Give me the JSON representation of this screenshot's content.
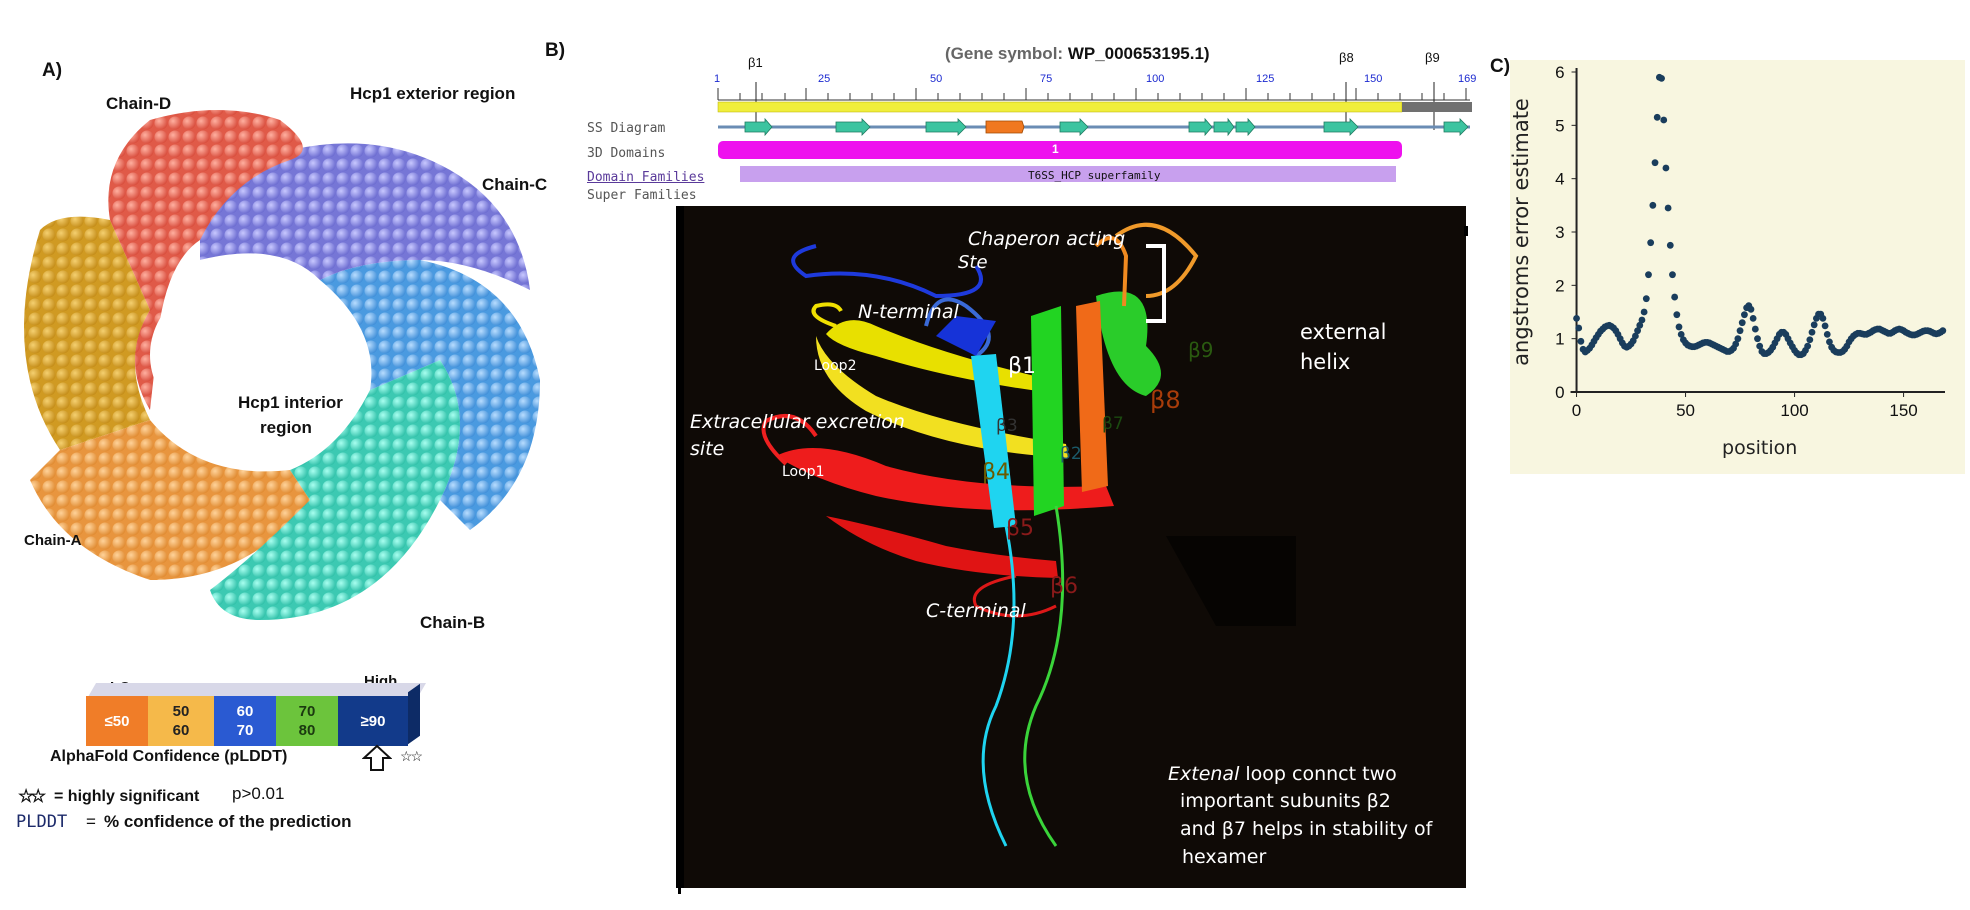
{
  "panel_a": {
    "letter": "A)",
    "chain_d": "Chain-D",
    "exterior": "Hcp1 exterior region",
    "chain_c": "Chain-C",
    "interior_1": "Hcp1 interior",
    "interior_2": "region",
    "chain_a": "Chain-A",
    "chain_b": "Chain-B",
    "colors": {
      "chain_a": "#f0a04b",
      "chain_b": "#4fd8c0",
      "chain_c": "#7b7bd9",
      "chain_d": "#e8604c",
      "chain_e": "#d9a020",
      "chain_f": "#5aa6e0"
    }
  },
  "legend": {
    "low": "LOw",
    "high": "High",
    "bins": [
      {
        "l1": "≤50",
        "l2": "",
        "color": "#f07d28"
      },
      {
        "l1": "50",
        "l2": "60",
        "color": "#f5b94a"
      },
      {
        "l1": "60",
        "l2": "70",
        "color": "#2a5ad2"
      },
      {
        "l1": "70",
        "l2": "80",
        "color": "#6cc43c"
      },
      {
        "l1": "≥90",
        "l2": "",
        "color": "#123a8a"
      }
    ],
    "caption": "AlphaFold Confidence (pLDDT)",
    "star_note": "= highly significant",
    "pvalue": "p>0.01",
    "plddt_key": "PLDDT",
    "plddt_eq": "=",
    "plddt_def": "% confidence of the prediction"
  },
  "panel_b": {
    "letter": "B)",
    "title_prefix": "(Gene symbol: ",
    "title_gene": "WP_000653195.1)",
    "ticks": [
      "1",
      "25",
      "50",
      "75",
      "100",
      "125",
      "150",
      "169"
    ],
    "beta_top": [
      "β1",
      "β8",
      "β9"
    ],
    "tracks": [
      "SS Diagram",
      "3D Domains",
      "Domain Families",
      "Super Families"
    ],
    "domain_label": "1",
    "family_label": "T6SS_HCP superfamily",
    "structure": {
      "chaperon_1": "Chaperon acting",
      "chaperon_2": "Ste",
      "n_terminal": "N-terminal",
      "loop2": "Loop2",
      "extracellular_1": "Extracellular excretion",
      "extracellular_2": "site",
      "loop1": "Loop1",
      "b1": "β1",
      "b2": "β2",
      "b3": "β3",
      "b4": "β4",
      "b5": "β5",
      "b6": "β6",
      "b7": "β7",
      "b8": "β8",
      "b9": "β9",
      "c_terminal": "C-terminal",
      "external_helix_1": "external",
      "external_helix_2": "helix",
      "note_italic": "Extenal",
      "note_1": " loop  connct two",
      "note_2": "important subunits β2",
      "note_3": "and β7 helps in stability of",
      "note_4": "hexamer"
    }
  },
  "panel_c": {
    "letter": "C)"
  },
  "chart_data": {
    "type": "scatter",
    "title": "",
    "xlabel": "position",
    "ylabel": "angstroms error estimate",
    "xlim": [
      -3,
      169
    ],
    "ylim": [
      0,
      6
    ],
    "xticks": [
      0,
      50,
      100,
      150
    ],
    "yticks": [
      0,
      1,
      2,
      3,
      4,
      5,
      6
    ],
    "x": [
      0,
      1,
      2,
      3,
      4,
      5,
      6,
      7,
      8,
      9,
      10,
      11,
      12,
      13,
      14,
      15,
      16,
      17,
      18,
      19,
      20,
      21,
      22,
      23,
      24,
      25,
      26,
      27,
      28,
      29,
      30,
      31,
      32,
      33,
      34,
      35,
      36,
      37,
      38,
      39,
      40,
      41,
      42,
      43,
      44,
      45,
      46,
      47,
      48,
      49,
      50,
      51,
      52,
      53,
      54,
      55,
      56,
      57,
      58,
      59,
      60,
      61,
      62,
      63,
      64,
      65,
      66,
      67,
      68,
      69,
      70,
      71,
      72,
      73,
      74,
      75,
      76,
      77,
      78,
      79,
      80,
      81,
      82,
      83,
      84,
      85,
      86,
      87,
      88,
      89,
      90,
      91,
      92,
      93,
      94,
      95,
      96,
      97,
      98,
      99,
      100,
      101,
      102,
      103,
      104,
      105,
      106,
      107,
      108,
      109,
      110,
      111,
      112,
      113,
      114,
      115,
      116,
      117,
      118,
      119,
      120,
      121,
      122,
      123,
      124,
      125,
      126,
      127,
      128,
      129,
      130,
      131,
      132,
      133,
      134,
      135,
      136,
      137,
      138,
      139,
      140,
      141,
      142,
      143,
      144,
      145,
      146,
      147,
      148,
      149,
      150,
      151,
      152,
      153,
      154,
      155,
      156,
      157,
      158,
      159,
      160,
      161,
      162,
      163,
      164,
      165,
      166,
      167,
      168
    ],
    "y": [
      1.38,
      1.2,
      0.95,
      0.8,
      0.75,
      0.78,
      0.82,
      0.88,
      0.95,
      1.02,
      1.08,
      1.14,
      1.18,
      1.22,
      1.24,
      1.25,
      1.23,
      1.2,
      1.15,
      1.08,
      1.0,
      0.92,
      0.86,
      0.84,
      0.86,
      0.9,
      0.96,
      1.05,
      1.15,
      1.25,
      1.35,
      1.5,
      1.75,
      2.2,
      2.8,
      3.5,
      4.3,
      5.15,
      5.9,
      5.88,
      5.1,
      4.2,
      3.45,
      2.75,
      2.2,
      1.78,
      1.45,
      1.22,
      1.08,
      0.98,
      0.92,
      0.88,
      0.86,
      0.85,
      0.85,
      0.86,
      0.88,
      0.9,
      0.92,
      0.93,
      0.93,
      0.92,
      0.9,
      0.88,
      0.86,
      0.84,
      0.82,
      0.8,
      0.78,
      0.76,
      0.76,
      0.78,
      0.82,
      0.9,
      1.0,
      1.15,
      1.3,
      1.45,
      1.58,
      1.62,
      1.55,
      1.38,
      1.18,
      1.0,
      0.86,
      0.76,
      0.72,
      0.72,
      0.74,
      0.78,
      0.84,
      0.92,
      1.0,
      1.08,
      1.12,
      1.12,
      1.08,
      1.0,
      0.92,
      0.85,
      0.78,
      0.73,
      0.7,
      0.7,
      0.72,
      0.78,
      0.86,
      0.98,
      1.12,
      1.26,
      1.38,
      1.46,
      1.46,
      1.38,
      1.24,
      1.08,
      0.94,
      0.84,
      0.78,
      0.75,
      0.74,
      0.74,
      0.76,
      0.8,
      0.86,
      0.94,
      1.0,
      1.05,
      1.08,
      1.1,
      1.1,
      1.09,
      1.08,
      1.08,
      1.1,
      1.12,
      1.15,
      1.17,
      1.18,
      1.18,
      1.16,
      1.14,
      1.12,
      1.1,
      1.1,
      1.12,
      1.15,
      1.17,
      1.18,
      1.17,
      1.15,
      1.12,
      1.1,
      1.08,
      1.07,
      1.07,
      1.08,
      1.1,
      1.12,
      1.14,
      1.15,
      1.15,
      1.14,
      1.12,
      1.1,
      1.09,
      1.1,
      1.12,
      1.15
    ],
    "grid": false
  }
}
